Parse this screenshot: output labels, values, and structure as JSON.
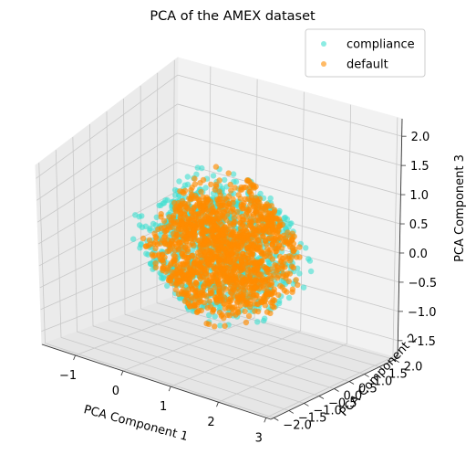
{
  "chart_data": {
    "type": "scatter",
    "projection": "3d",
    "title": "PCA of the AMEX dataset",
    "xlabel": "PCA Component 1",
    "ylabel": "PCA Component 2",
    "zlabel": "PCA Component 3",
    "xlim": [
      -1.7,
      3.1
    ],
    "ylim": [
      -2.1,
      2.1
    ],
    "zlim": [
      -1.8,
      2.3
    ],
    "x_ticks": [
      "−1",
      "0",
      "1",
      "2",
      "3"
    ],
    "x_tick_values": [
      -1,
      0,
      1,
      2,
      3
    ],
    "y_ticks": [
      "−2.0",
      "−1.5",
      "−1.0",
      "−0.5",
      "0.0",
      "0.5",
      "1.0",
      "1.5",
      "2.0"
    ],
    "y_tick_values": [
      -2.0,
      -1.5,
      -1.0,
      -0.5,
      0.0,
      0.5,
      1.0,
      1.5,
      2.0
    ],
    "z_ticks": [
      "−1.5",
      "−1.0",
      "−0.5",
      "0.0",
      "0.5",
      "1.0",
      "1.5",
      "2.0"
    ],
    "z_tick_values": [
      -1.5,
      -1.0,
      -0.5,
      0.0,
      0.5,
      1.0,
      1.5,
      2.0
    ],
    "grid": true,
    "legend_position": "top-right",
    "series": [
      {
        "name": "compliance",
        "color": "#40E0D0",
        "center": [
          0.7,
          0.0,
          0.25
        ],
        "extent": [
          2.3,
          1.95,
          1.95
        ]
      },
      {
        "name": "default",
        "color": "#FF8C00",
        "center": [
          0.75,
          0.0,
          0.2
        ],
        "extent": [
          2.1,
          1.85,
          1.85
        ]
      }
    ]
  }
}
